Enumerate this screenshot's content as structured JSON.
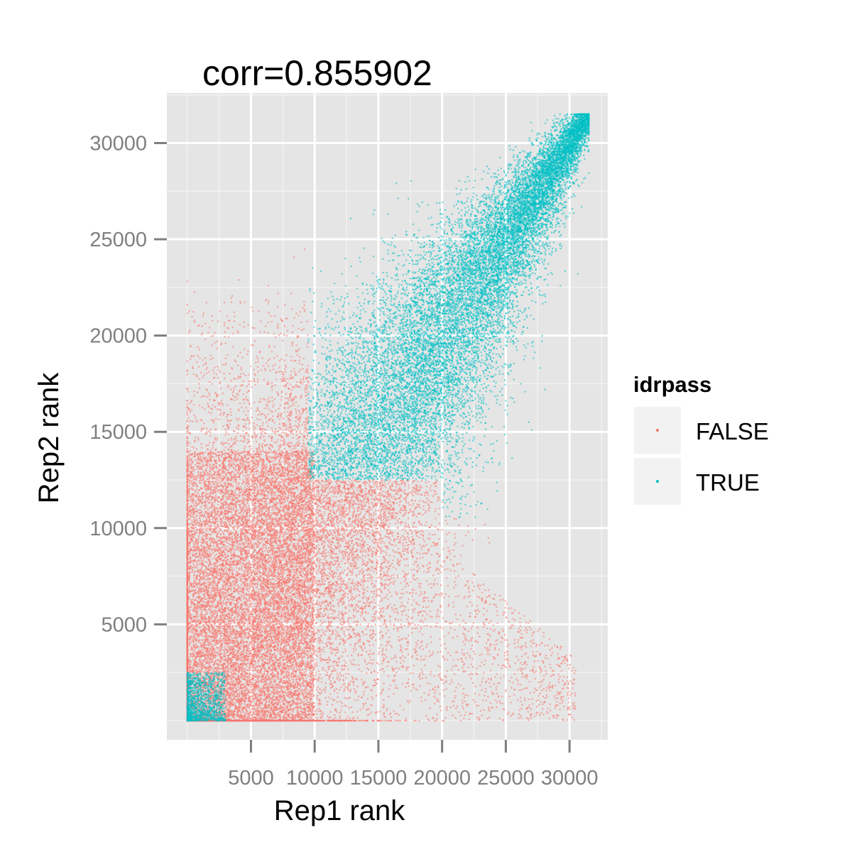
{
  "chart_data": {
    "type": "scatter",
    "title": "corr=0.855902",
    "xlabel": "Rep1 rank",
    "ylabel": "Rep2 rank",
    "xlim": [
      -1600,
      33000
    ],
    "ylim": [
      -1000,
      32600
    ],
    "x_ticks": [
      5000,
      10000,
      15000,
      20000,
      25000,
      30000
    ],
    "x_tick_labels": [
      "5000",
      "10000",
      "15000",
      "20000",
      "25000",
      "30000"
    ],
    "y_ticks": [
      5000,
      10000,
      15000,
      20000,
      25000,
      30000
    ],
    "y_tick_labels": [
      "5000",
      "10000",
      "15000",
      "20000",
      "25000",
      "30000"
    ],
    "grid": true,
    "panel_background": "#e5e5e5",
    "grid_color": "#ffffff",
    "legend": {
      "title": "idrpass",
      "placement": "right",
      "entries": [
        {
          "label": "FALSE",
          "color": "#f8766d"
        },
        {
          "label": "TRUE",
          "color": "#00bfc4"
        }
      ]
    },
    "series": [
      {
        "name": "FALSE",
        "color": "#f8766d",
        "points_approx": 17000,
        "x_range": [
          0,
          30500
        ],
        "y_range": [
          0,
          22000
        ],
        "density": "dense in lower-left block (Rep1 0–10000, Rep2 0–14000), sparse scatter toward bottom-right and upper-left"
      },
      {
        "name": "TRUE",
        "color": "#00bfc4",
        "points_approx": 31000,
        "x_range": [
          0,
          31500
        ],
        "y_range": [
          0,
          31500
        ],
        "density": "dense along diagonal from (10000,12000) to (31500,31500), small cluster near origin (0–3000, 0–2500)"
      }
    ]
  }
}
